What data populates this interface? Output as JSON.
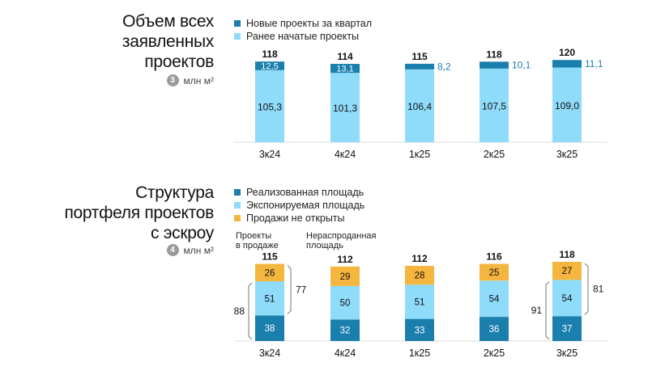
{
  "chart_data": [
    {
      "type": "bar",
      "stacked": true,
      "title": [
        "Объем всех",
        "заявленных",
        "проектов"
      ],
      "unit_badge": "3",
      "unit": "млн м²",
      "categories": [
        "3к24",
        "4к24",
        "1к25",
        "2к25",
        "3к25"
      ],
      "totals": [
        "118",
        "114",
        "115",
        "118",
        "120"
      ],
      "series": [
        {
          "name": "Ранее начатые проекты",
          "color": "#8fdbfa",
          "values": [
            105.3,
            101.3,
            106.4,
            107.5,
            109.0
          ],
          "labels": [
            "105,3",
            "101,3",
            "106,4",
            "107,5",
            "109,0"
          ]
        },
        {
          "name": "Новые проекты за квартал",
          "color": "#1a7fad",
          "values": [
            12.5,
            13.1,
            8.2,
            10.1,
            11.1
          ],
          "labels": [
            "12,5",
            "13,1",
            "8,2",
            "10,1",
            "11,1"
          ]
        }
      ],
      "legend_order": [
        1,
        0
      ],
      "outside_label_cols": [
        2,
        3,
        4
      ],
      "ylim": [
        0,
        130
      ]
    },
    {
      "type": "bar",
      "stacked": true,
      "title": [
        "Структура",
        "портфеля проектов",
        "с эскроу"
      ],
      "unit_badge": "4",
      "unit": "млн м²",
      "categories": [
        "3к24",
        "4к24",
        "1к25",
        "2к25",
        "3к25"
      ],
      "totals": [
        "115",
        "112",
        "112",
        "116",
        "118"
      ],
      "series": [
        {
          "name": "Реализованная площадь",
          "color": "#1a7fad",
          "values": [
            38,
            32,
            33,
            36,
            37
          ],
          "labels": [
            "38",
            "32",
            "33",
            "36",
            "37"
          ]
        },
        {
          "name": "Экспонируемая площадь",
          "color": "#8fdbfa",
          "values": [
            51,
            50,
            51,
            54,
            54
          ],
          "labels": [
            "51",
            "50",
            "51",
            "54",
            "54"
          ]
        },
        {
          "name": "Продажи не открыты",
          "color": "#f5b63f",
          "values": [
            26,
            29,
            28,
            25,
            27
          ],
          "labels": [
            "26",
            "29",
            "28",
            "25",
            "27"
          ]
        }
      ],
      "legend_order": [
        0,
        1,
        2
      ],
      "ylim": [
        0,
        130
      ],
      "annotations": {
        "on_sale_label": "Проекты\nв продаже",
        "unsold_label": "Нераспроданная\nплощадь",
        "brackets": [
          {
            "category": "3к24",
            "on_sale": "88",
            "unsold": "77"
          },
          {
            "category": "3к25",
            "on_sale": "91",
            "unsold": "81"
          }
        ]
      }
    }
  ]
}
